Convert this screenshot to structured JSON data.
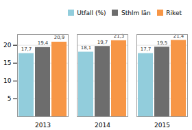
{
  "chart_data": {
    "type": "bar",
    "categories": [
      "2013",
      "2014",
      "2015"
    ],
    "series": [
      {
        "name": "Utfall (%)",
        "color": "#92CDDC",
        "values": [
          17.7,
          18.1,
          17.7
        ],
        "value_labels": [
          "17,7",
          "18,1",
          "17,7"
        ]
      },
      {
        "name": "Sthlm län",
        "color": "#6D6D6D",
        "values": [
          19.4,
          19.7,
          19.5
        ],
        "value_labels": [
          "19,4",
          "19,7",
          "19,5"
        ]
      },
      {
        "name": "Riket",
        "color": "#F79646",
        "values": [
          20.9,
          21.3,
          21.4
        ],
        "value_labels": [
          "20,9",
          "21,3",
          "21,4"
        ]
      }
    ],
    "ylim": [
      0,
      23
    ],
    "yticks": [
      5,
      10,
      15,
      20
    ],
    "grid": true,
    "legend": "upper right",
    "data_labels": true
  }
}
